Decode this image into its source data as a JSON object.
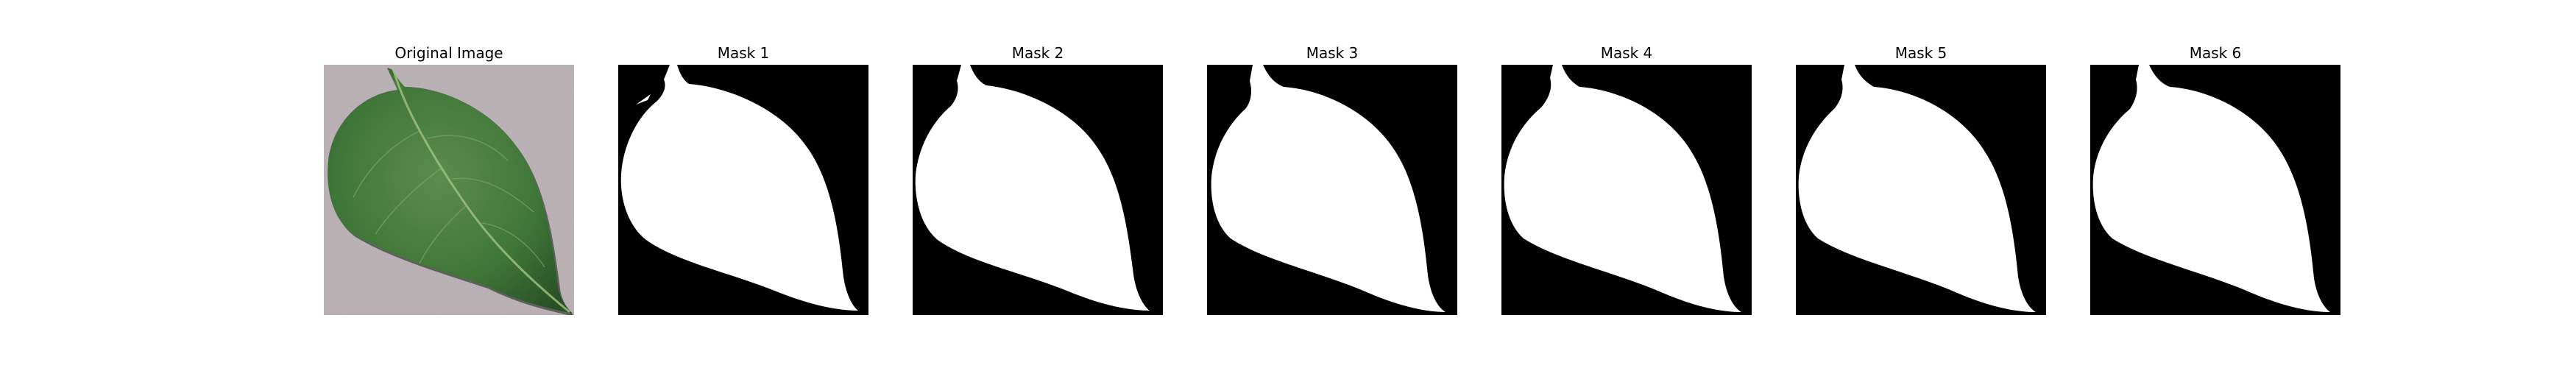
{
  "figure": {
    "panels": [
      {
        "title": "Original Image",
        "kind": "photo"
      },
      {
        "title": "Mask 1",
        "kind": "mask"
      },
      {
        "title": "Mask 2",
        "kind": "mask"
      },
      {
        "title": "Mask 3",
        "kind": "mask"
      },
      {
        "title": "Mask 4",
        "kind": "mask"
      },
      {
        "title": "Mask 5",
        "kind": "mask"
      },
      {
        "title": "Mask 6",
        "kind": "mask"
      }
    ]
  },
  "colors": {
    "background": "#ffffff",
    "mask_background": "#000000",
    "mask_foreground": "#ffffff",
    "photo_background": "#b8afb3",
    "leaf_dark": "#2f5a2c",
    "leaf_mid": "#3f7638",
    "leaf_light": "#6c9a5a",
    "vein": "#9ebf7c",
    "shadow": "#1a1a1a"
  }
}
